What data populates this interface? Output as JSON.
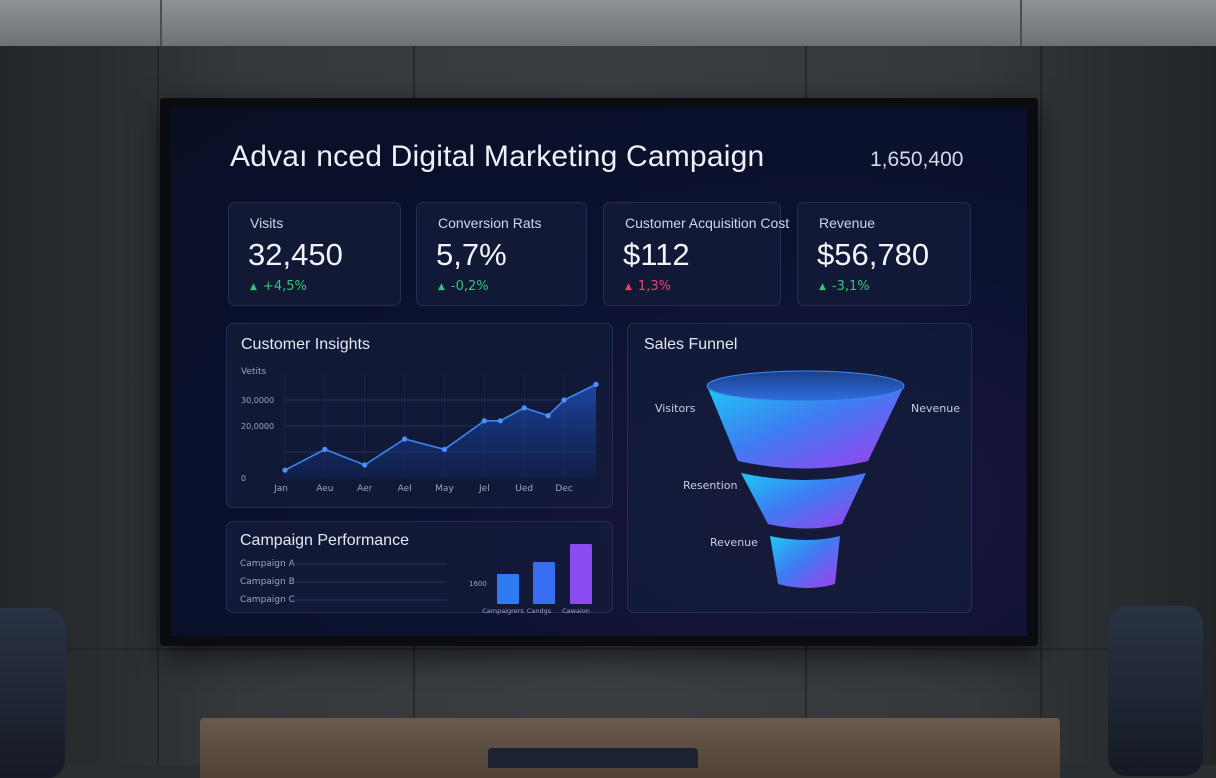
{
  "dashboard": {
    "title": "Advaı nced Digital Marketing Campaign",
    "headline_value": "1,650,400"
  },
  "kpis": [
    {
      "label": "Visits",
      "value": "32,450",
      "delta": "+4,5%",
      "trend": "up"
    },
    {
      "label": "Conversion Rats",
      "value": "5,7%",
      "delta": "-0,2%",
      "trend": "up"
    },
    {
      "label": "Customer Acquisition Cost",
      "value": "$112",
      "delta": "1,3%",
      "trend": "down"
    },
    {
      "label": "Revenue",
      "value": "$56,780",
      "delta": "-3,1%",
      "trend": "up"
    }
  ],
  "colors": {
    "up": "#37c27a",
    "down": "#e0476a",
    "line": "#3a86f0",
    "bar_blue": "#2f7cf2",
    "bar_purple": "#8a4cf0"
  },
  "icons": {
    "up": "triangle-up-icon",
    "down": "triangle-up-icon"
  },
  "customer_insights": {
    "title": "Customer Insights",
    "y_title": "Vetits",
    "y_ticks": [
      "30,0000",
      "20,0000",
      "0"
    ]
  },
  "campaign_performance": {
    "title": "Campaign Performance",
    "rows": [
      "Campaign A",
      "Campaign B",
      "Campaign C"
    ],
    "bar_axis_label": "1600",
    "bar_labels": [
      "Campaigrers",
      "Candgs",
      "Cawaion"
    ]
  },
  "sales_funnel": {
    "title": "Sales Funnel",
    "labels": {
      "visitors": "Visitors",
      "revenue_right": "Nevenue",
      "retention": "Resention",
      "revenue_bottom": "Revenue"
    }
  },
  "chart_data": [
    {
      "type": "area",
      "title": "Customer Insights",
      "ylabel": "Vetits",
      "y_tick_labels": [
        "30,0000",
        "20,0000",
        "0"
      ],
      "x_tick_labels": [
        "Jan",
        "Aeu",
        "Aer",
        "Ael",
        "May",
        "Jel",
        "Ued",
        "Dec"
      ],
      "ylim": [
        0,
        40000
      ],
      "x": [
        0,
        1,
        2,
        3,
        4,
        5,
        5.4,
        6,
        6.6,
        7,
        7.8
      ],
      "y": [
        3000,
        11000,
        5000,
        15000,
        11000,
        22000,
        22000,
        27000,
        24000,
        30000,
        36000
      ],
      "grid": true
    },
    {
      "type": "bar",
      "categories": [
        "Campaigrers",
        "Candgs",
        "Cawaion"
      ],
      "values": [
        30,
        42,
        60
      ],
      "ylim": [
        0,
        65
      ]
    }
  ]
}
